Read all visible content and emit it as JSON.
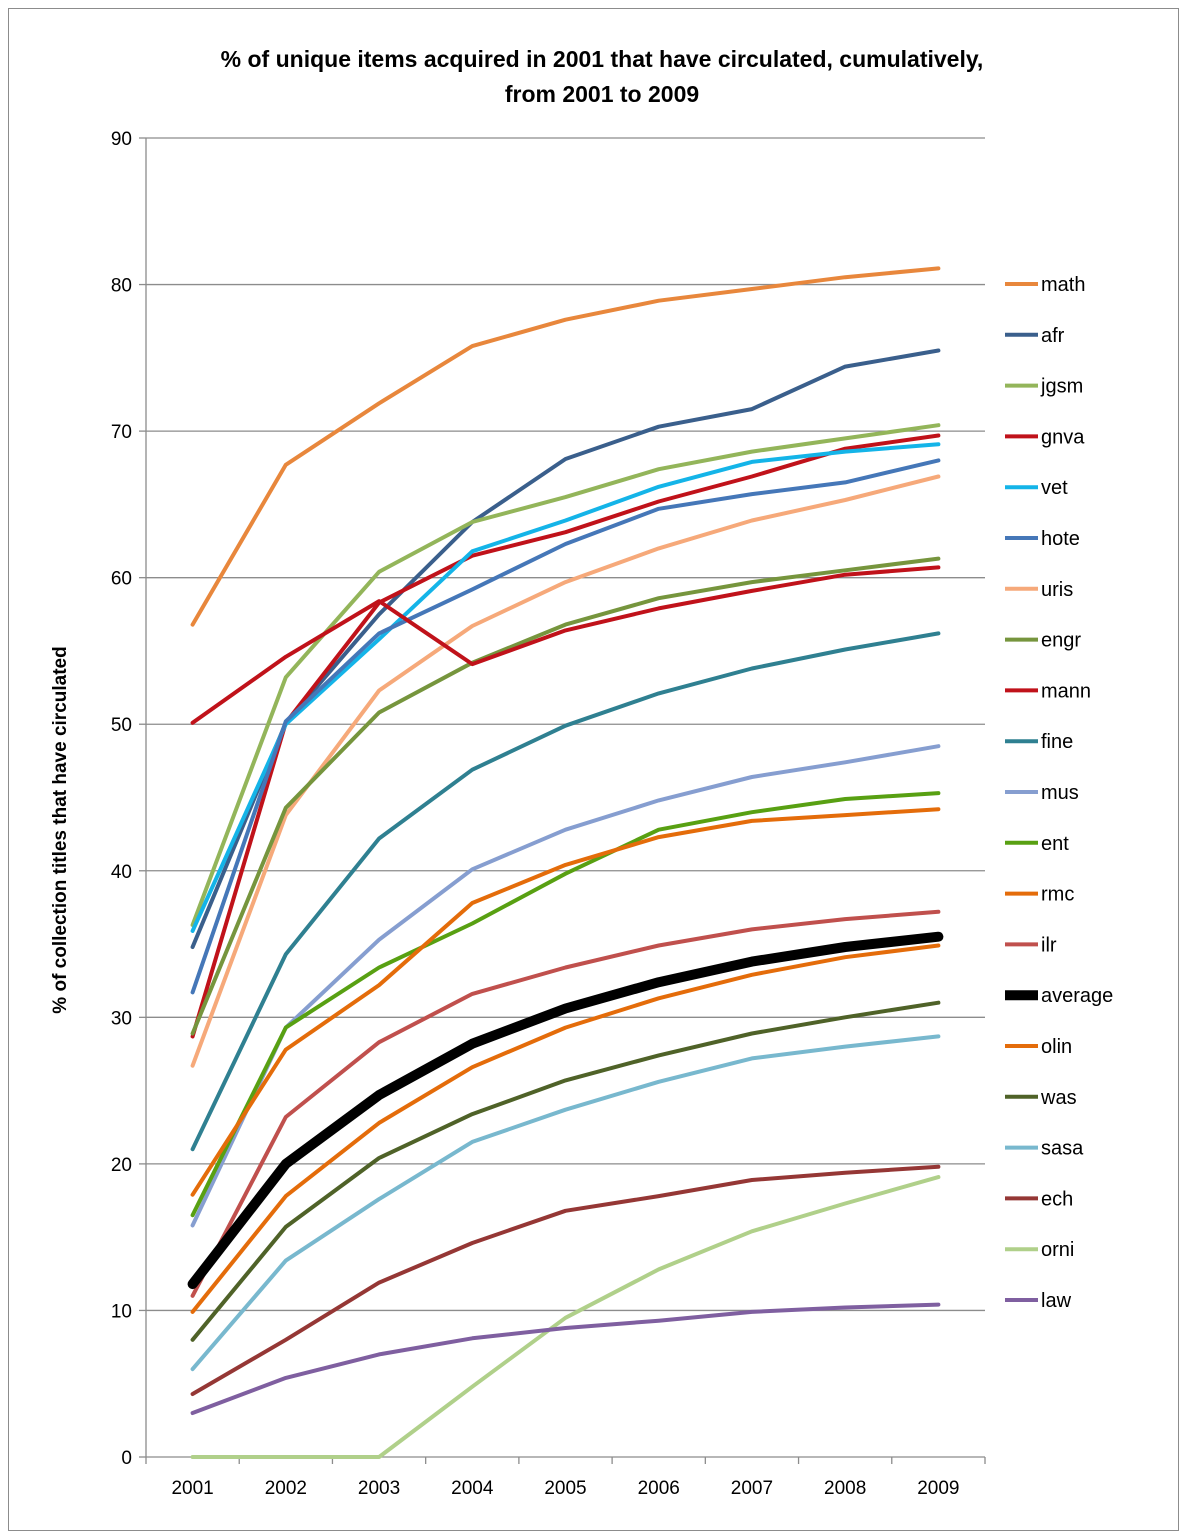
{
  "chart_data": {
    "type": "line",
    "title_lines": [
      "% of unique items acquired in 2001 that have circulated, cumulatively,",
      "from 2001 to 2009"
    ],
    "xlabel": "",
    "ylabel": "% of collection titles that have circulated",
    "x": [
      "2001",
      "2002",
      "2003",
      "2004",
      "2005",
      "2006",
      "2007",
      "2008",
      "2009"
    ],
    "ylim": [
      0,
      90
    ],
    "yticks": [
      0,
      10,
      20,
      30,
      40,
      50,
      60,
      70,
      80,
      90
    ],
    "grid": "horizontal",
    "legend_position": "right",
    "series": [
      {
        "name": "math",
        "color": "#e8873c",
        "values": [
          56.8,
          67.7,
          71.9,
          75.8,
          77.6,
          78.9,
          79.7,
          80.5,
          81.1
        ]
      },
      {
        "name": "afr",
        "color": "#3a5f8c",
        "values": [
          34.8,
          50.1,
          57.5,
          63.8,
          68.1,
          70.3,
          71.5,
          74.4,
          75.5
        ]
      },
      {
        "name": "jgsm",
        "color": "#93b55a",
        "values": [
          36.3,
          53.2,
          60.4,
          63.8,
          65.5,
          67.4,
          68.6,
          69.5,
          70.4
        ]
      },
      {
        "name": "gnva",
        "color": "#c0121a",
        "values": [
          28.7,
          50.1,
          58.3,
          61.5,
          63.1,
          65.2,
          66.9,
          68.8,
          69.7
        ]
      },
      {
        "name": "vet",
        "color": "#14b4e8",
        "values": [
          35.9,
          50.0,
          55.8,
          61.8,
          63.9,
          66.2,
          67.9,
          68.6,
          69.1
        ]
      },
      {
        "name": "hote",
        "color": "#4577b8",
        "values": [
          31.7,
          50.2,
          56.2,
          59.2,
          62.3,
          64.7,
          65.7,
          66.5,
          68.0
        ]
      },
      {
        "name": "uris",
        "color": "#f6a97a",
        "values": [
          26.7,
          43.8,
          52.3,
          56.7,
          59.7,
          62.0,
          63.9,
          65.3,
          66.9
        ]
      },
      {
        "name": "engr",
        "color": "#76953d",
        "values": [
          28.9,
          44.3,
          50.8,
          54.2,
          56.8,
          58.6,
          59.7,
          60.5,
          61.3
        ]
      },
      {
        "name": "mann",
        "color": "#c0121a",
        "values": [
          50.1,
          54.6,
          58.4,
          54.1,
          56.4,
          57.9,
          59.1,
          60.2,
          60.7
        ]
      },
      {
        "name": "fine",
        "color": "#2f8091",
        "values": [
          21.0,
          34.3,
          42.2,
          46.9,
          49.9,
          52.1,
          53.8,
          55.1,
          56.2
        ]
      },
      {
        "name": "mus",
        "color": "#869ed0",
        "values": [
          15.8,
          29.3,
          35.3,
          40.1,
          42.8,
          44.8,
          46.4,
          47.4,
          48.5
        ]
      },
      {
        "name": "ent",
        "color": "#58a012",
        "values": [
          16.5,
          29.3,
          33.4,
          36.4,
          39.8,
          42.8,
          44.0,
          44.9,
          45.3
        ]
      },
      {
        "name": "rmc",
        "color": "#e46c0a",
        "values": [
          17.9,
          27.8,
          32.2,
          37.8,
          40.4,
          42.3,
          43.4,
          43.8,
          44.2
        ]
      },
      {
        "name": "ilr",
        "color": "#c0504d",
        "values": [
          11.0,
          23.2,
          28.3,
          31.6,
          33.4,
          34.9,
          36.0,
          36.7,
          37.2
        ]
      },
      {
        "name": "average",
        "color": "#000000",
        "values": [
          11.8,
          20.0,
          24.7,
          28.2,
          30.6,
          32.4,
          33.8,
          34.8,
          35.5
        ]
      },
      {
        "name": "olin",
        "color": "#e46c0a",
        "values": [
          9.9,
          17.8,
          22.8,
          26.6,
          29.3,
          31.3,
          32.9,
          34.1,
          34.9
        ]
      },
      {
        "name": "was",
        "color": "#4f6228",
        "values": [
          8.0,
          15.7,
          20.4,
          23.4,
          25.7,
          27.4,
          28.9,
          30.0,
          31.0
        ]
      },
      {
        "name": "sasa",
        "color": "#78b8ce",
        "values": [
          6.0,
          13.4,
          17.6,
          21.5,
          23.7,
          25.6,
          27.2,
          28.0,
          28.7
        ]
      },
      {
        "name": "ech",
        "color": "#953735",
        "values": [
          4.3,
          8.0,
          11.9,
          14.6,
          16.8,
          17.8,
          18.9,
          19.4,
          19.8
        ]
      },
      {
        "name": "orni",
        "color": "#b0d08a",
        "values": [
          0.0,
          0.0,
          0.0,
          4.8,
          9.5,
          12.8,
          15.4,
          17.3,
          19.1
        ]
      },
      {
        "name": "law",
        "color": "#7f5fa0",
        "values": [
          3.0,
          5.4,
          7.0,
          8.1,
          8.8,
          9.3,
          9.9,
          10.2,
          10.4
        ]
      }
    ]
  }
}
